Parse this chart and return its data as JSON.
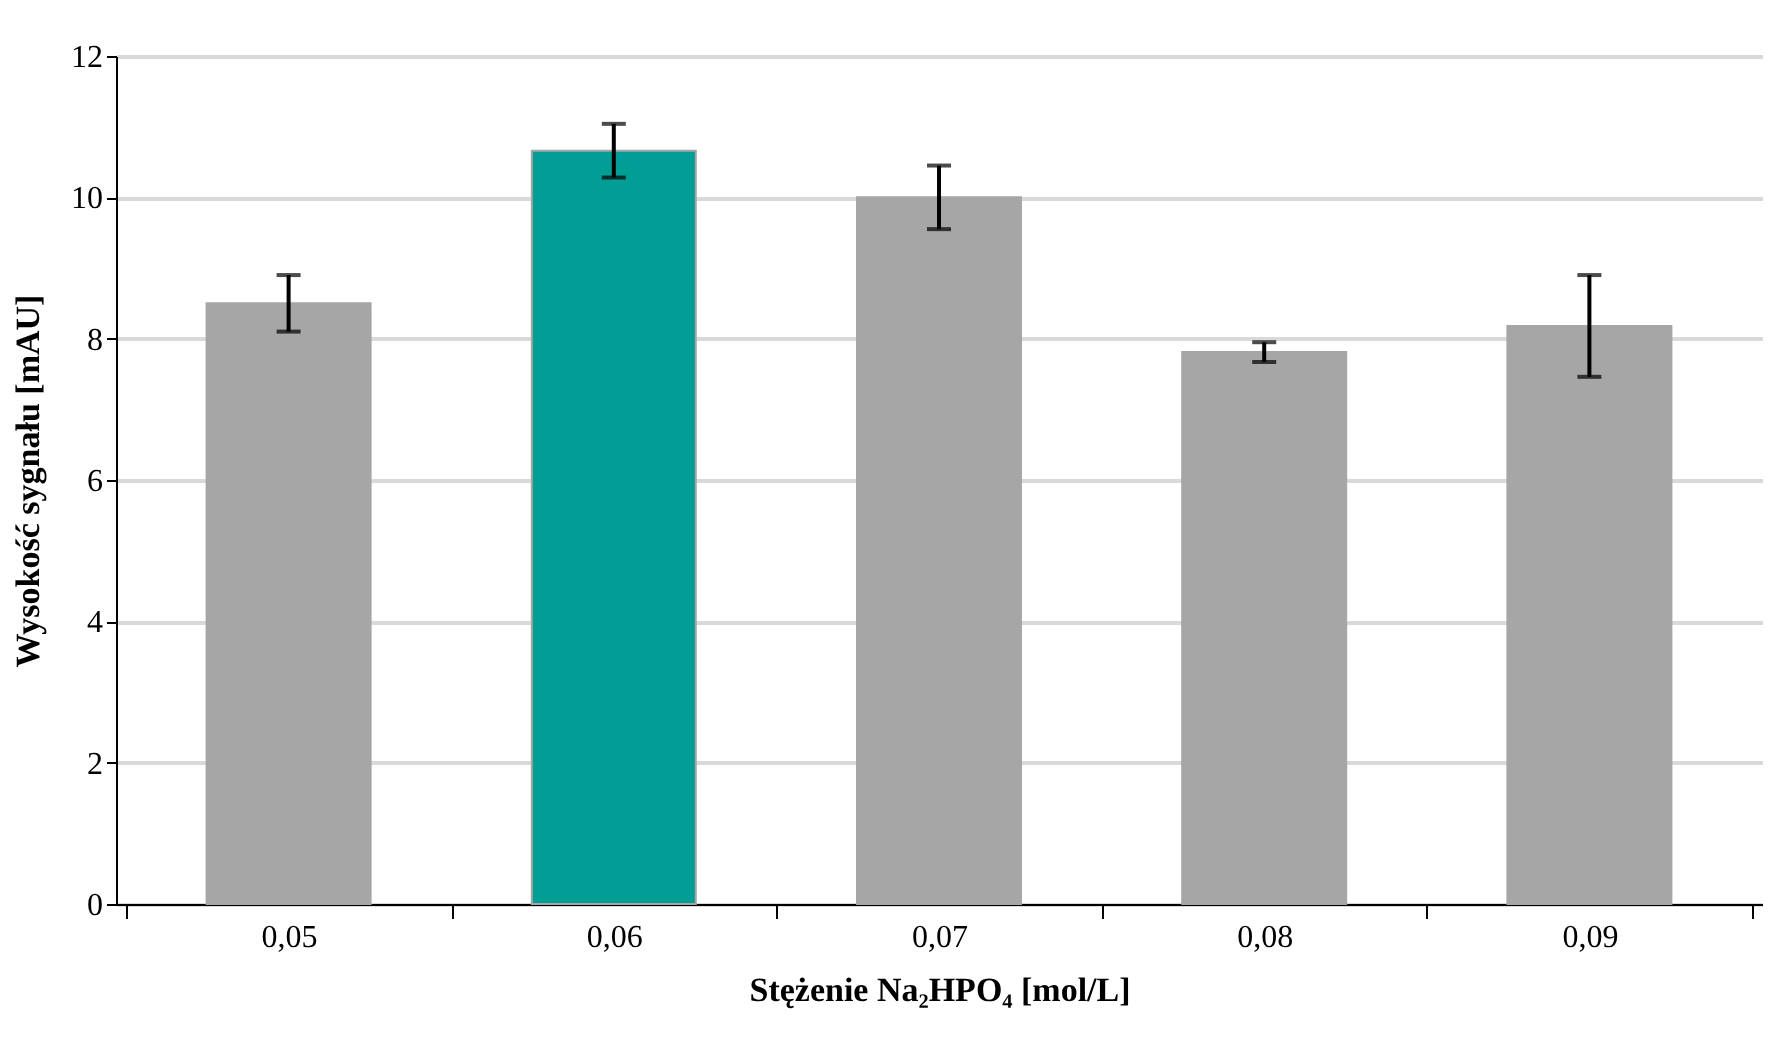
{
  "chart_data": {
    "type": "bar",
    "categories": [
      "0,05",
      "0,06",
      "0,07",
      "0,08",
      "0,09"
    ],
    "values": [
      8.5,
      10.66,
      10.0,
      7.81,
      8.18
    ],
    "errors": [
      0.4,
      0.38,
      0.45,
      0.14,
      0.72
    ],
    "colors": [
      "#a6a6a6",
      "#009e94",
      "#a6a6a6",
      "#a6a6a6",
      "#a6a6a6"
    ],
    "xlabel": "Stężenie Na₂HPO₄ [mol/L]",
    "ylabel": "Wysokość sygnału [mAU]",
    "ylim": [
      0,
      12
    ],
    "yticks": [
      0,
      2,
      4,
      6,
      8,
      10,
      12
    ],
    "grid": "y"
  }
}
